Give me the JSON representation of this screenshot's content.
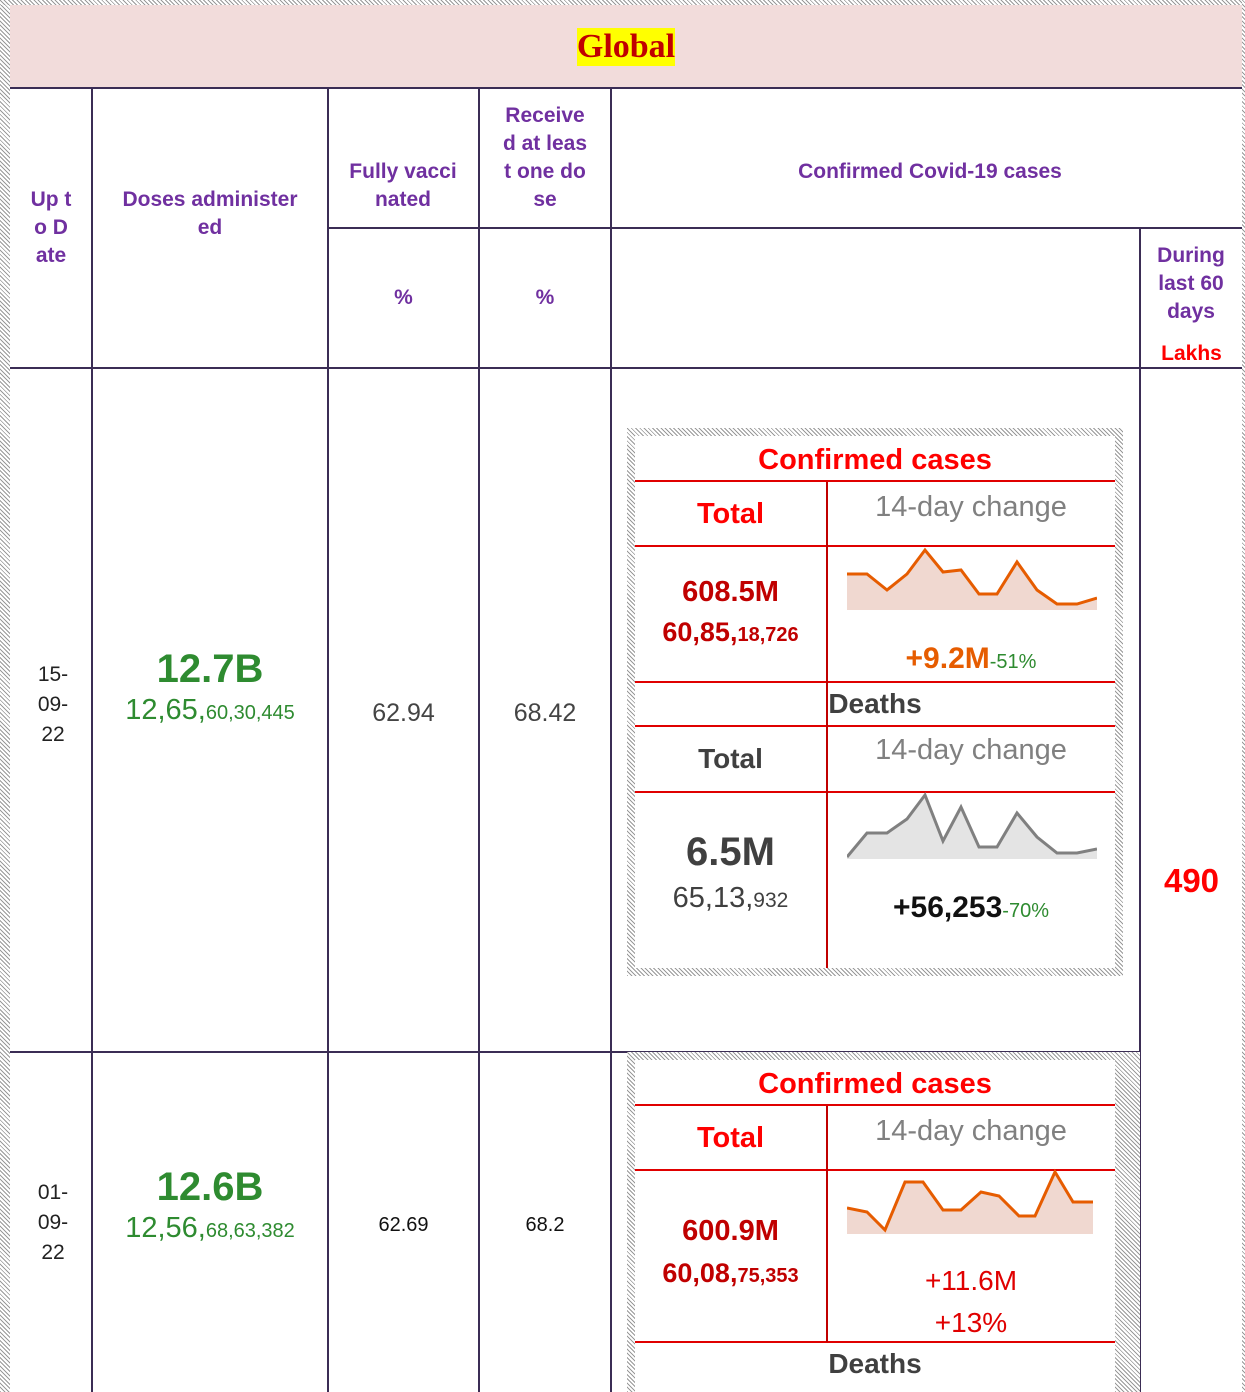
{
  "title": "Global",
  "header": {
    "date": "Up to Date",
    "doses": "Doses administered",
    "fully": "Fully vaccinated",
    "received": "Received at least one dose",
    "confirmed": "Confirmed Covid-19 cases",
    "fully_unit": "%",
    "received_unit": "%",
    "last60": "During last 60 days",
    "last60_unit": "Lakhs"
  },
  "rows": [
    {
      "date": "15-09-22",
      "doses_short": "12.7B",
      "doses_full": [
        "12,65,",
        "60,30,445"
      ],
      "fully": 62.94,
      "received": 68.42,
      "cases": {
        "heading": "Confirmed cases",
        "total_label": "Total",
        "change_label": "14-day change",
        "total_short": "608.5M",
        "total_full": [
          "60,85,",
          "18,726"
        ],
        "change": "+9.2M",
        "change_pct": "-51%"
      },
      "deaths": {
        "heading": "Deaths",
        "total_label": "Total",
        "change_label": "14-day change",
        "total_short": "6.5M",
        "total_full": [
          "65,13,",
          "932"
        ],
        "change": "+56,253",
        "change_pct": "-70%"
      },
      "last60": 490
    },
    {
      "date": "01-09-22",
      "doses_short": "12.6B",
      "doses_full": [
        "12,56,",
        "68,63,382"
      ],
      "fully": 62.69,
      "received": 68.2,
      "cases": {
        "heading": "Confirmed cases",
        "total_label": "Total",
        "change_label": "14-day change",
        "total_short": "600.9M",
        "total_full": [
          "60,08,",
          "75,353"
        ],
        "change": "+11.6M",
        "change_pct": "+13%"
      },
      "deaths": {
        "heading": "Deaths"
      }
    }
  ]
}
